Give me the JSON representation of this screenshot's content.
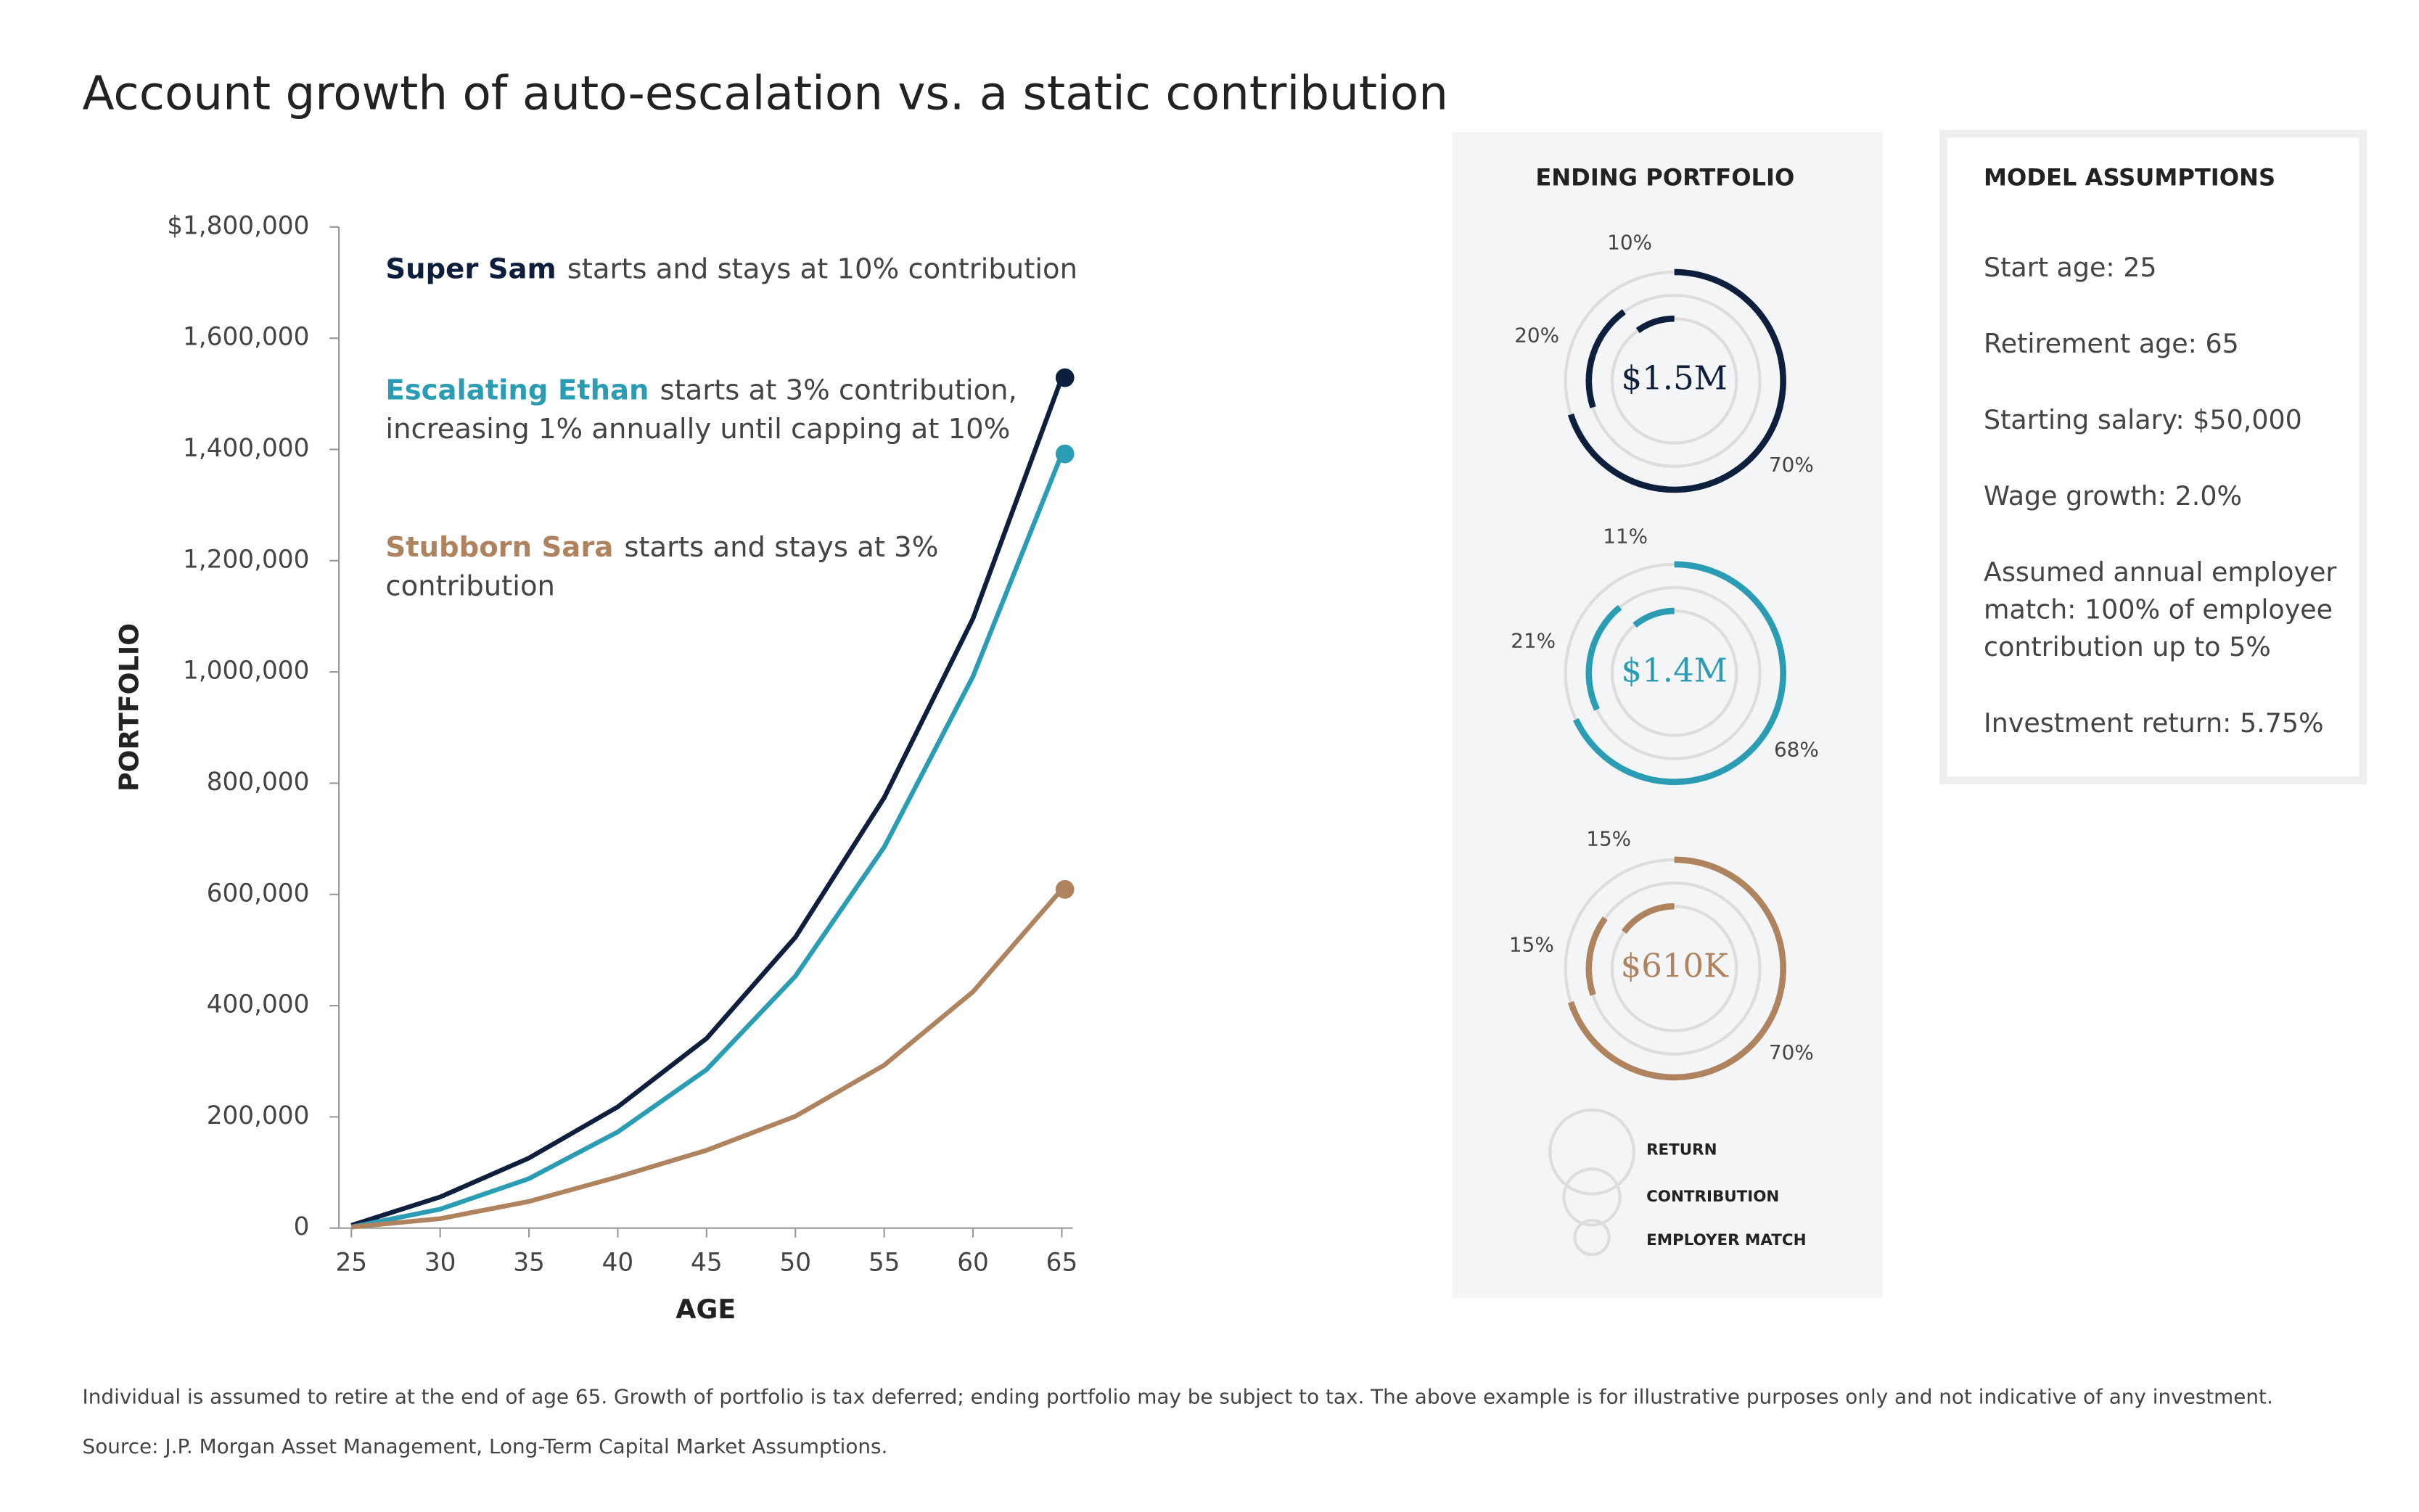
{
  "title": "Account growth of auto-escalation vs. a static contribution",
  "chart_data": [
    {
      "type": "line",
      "x": [
        25,
        30,
        35,
        40,
        45,
        50,
        55,
        60,
        65
      ],
      "xlim": [
        25,
        65
      ],
      "xticks": [
        25,
        30,
        35,
        40,
        45,
        50,
        55,
        60,
        65
      ],
      "ylim": [
        0,
        1800000
      ],
      "yticks": [
        0,
        {
          "value": 200000,
          "label": "200,000"
        },
        {
          "value": 400000,
          "label": "400,000"
        },
        {
          "value": 600000,
          "label": "600,000"
        },
        {
          "value": 800000,
          "label": "800,000"
        },
        {
          "value": 1000000,
          "label": "1,000,000"
        },
        {
          "value": 1200000,
          "label": "1,200,000"
        },
        {
          "value": 1400000,
          "label": "1,400,000"
        },
        {
          "value": 1600000,
          "label": "1,600,000"
        },
        {
          "value": 1800000,
          "label": "$1,800,000"
        }
      ],
      "xlabel": "AGE",
      "ylabel": "PORTFOLIO",
      "series": [
        {
          "name": "Super Sam",
          "color": "#0d1f3c",
          "values": [
            5000,
            56000,
            126000,
            218000,
            341000,
            523000,
            774000,
            1096000,
            1529000
          ],
          "note": [
            "starts and stays at 10% contribution"
          ]
        },
        {
          "name": "Escalating Ethan",
          "color": "#2a9db5",
          "values": [
            2000,
            34000,
            89000,
            173000,
            285000,
            453000,
            685000,
            992000,
            1392000
          ],
          "note": [
            "starts at 3% contribution,",
            "increasing 1% annually until capping at 10%"
          ]
        },
        {
          "name": "Stubborn Sara",
          "color": "#b0835f",
          "values": [
            2000,
            17000,
            48000,
            92000,
            140000,
            201000,
            293000,
            425000,
            609000
          ],
          "note": [
            "starts and stays at 3%",
            "contribution"
          ]
        }
      ]
    },
    {
      "type": "donut",
      "title": "ENDING PORTFOLIO",
      "categories": [
        "RETURN",
        "CONTRIBUTION",
        "EMPLOYER MATCH"
      ],
      "rings": [
        {
          "center_label": "$1.5M",
          "color": "#0d1f3c",
          "values": [
            70,
            20,
            10
          ],
          "value_labels": [
            "70%",
            "20%",
            "10%"
          ]
        },
        {
          "center_label": "$1.4M",
          "color": "#2a9db5",
          "values": [
            68,
            21,
            11
          ],
          "value_labels": [
            "68%",
            "21%",
            "11%"
          ]
        },
        {
          "center_label": "$610K",
          "color": "#b0835f",
          "values": [
            70,
            15,
            15
          ],
          "value_labels": [
            "70%",
            "15%",
            "15%"
          ]
        }
      ]
    }
  ],
  "model_assumptions": {
    "title": "MODEL ASSUMPTIONS",
    "items": [
      [
        "Start age: 25"
      ],
      [
        "Retirement age: 65"
      ],
      [
        "Starting salary: $50,000"
      ],
      [
        "Wage growth: 2.0%"
      ],
      [
        "Assumed annual employer",
        "match: 100% of employee",
        "contribution up to 5%"
      ],
      [
        "Investment return: 5.75%"
      ]
    ]
  },
  "footnotes": [
    "Individual is assumed to retire at the end of age 65. Growth of portfolio is tax deferred; ending portfolio may be subject to tax. The above example is for illustrative purposes only and not indicative of any investment.",
    "Source: J.P. Morgan Asset Management, Long-Term Capital Market Assumptions."
  ]
}
